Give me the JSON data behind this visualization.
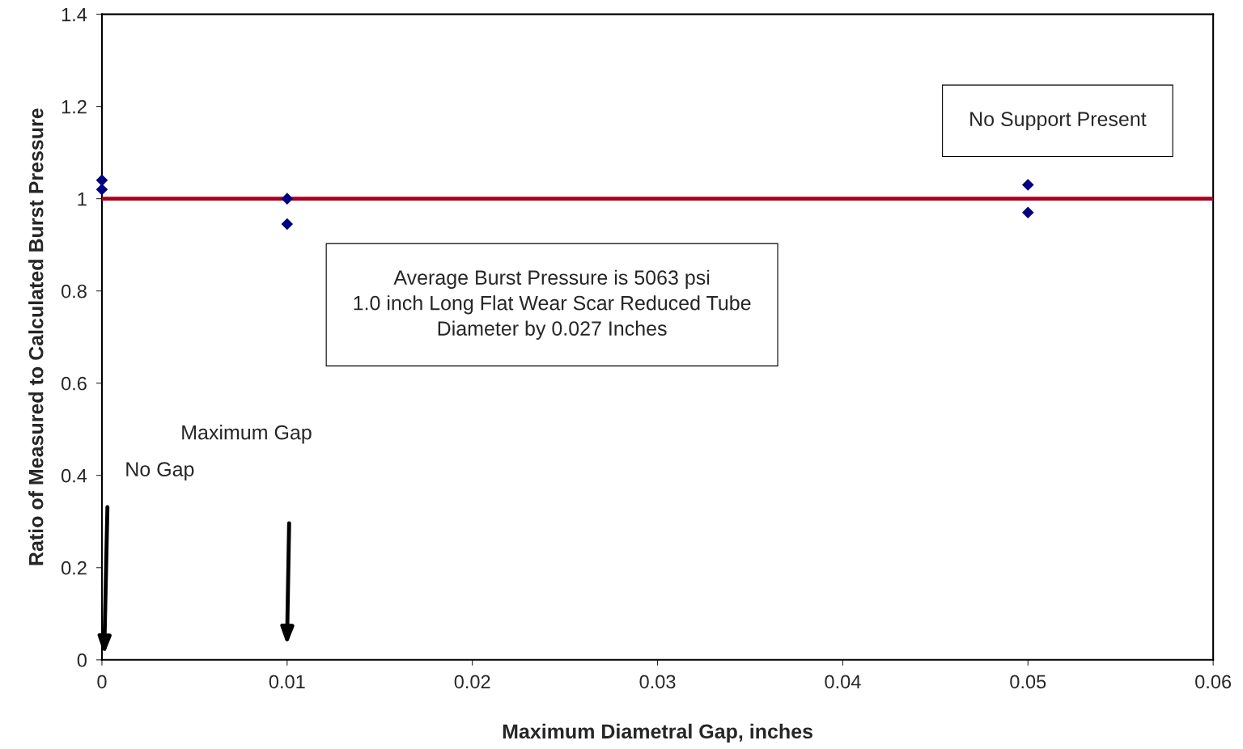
{
  "chart_data": {
    "type": "scatter",
    "xlabel": "Maximum Diametral Gap, inches",
    "ylabel": "Ratio of Measured to Calculated Burst Pressure",
    "x": [
      0,
      0,
      0.01,
      0.01,
      0.05,
      0.05
    ],
    "series": [
      {
        "color": "#000080",
        "values": [
          1.04,
          1.02,
          1.0,
          0.945,
          1.03,
          0.97
        ]
      }
    ],
    "marker": "diamond",
    "xlim": [
      0,
      0.06
    ],
    "xticks": [
      0,
      0.01,
      0.02,
      0.03,
      0.04,
      0.05,
      0.06
    ],
    "ylim": [
      0,
      1.4
    ],
    "yticks": [
      0,
      0.2,
      0.4,
      0.6,
      0.8,
      1,
      1.2,
      1.4
    ],
    "grid": false,
    "legend": false,
    "ref_lines": [
      {
        "axis": "y",
        "value": 1,
        "color": "#a50021"
      }
    ],
    "annotations": [
      "No Support Present",
      "Average Burst Pressure is 5063 psi\n1.0 inch Long Flat Wear Scar Reduced Tube\nDiameter by 0.027 Inches",
      "Maximum Gap",
      "No Gap"
    ]
  }
}
